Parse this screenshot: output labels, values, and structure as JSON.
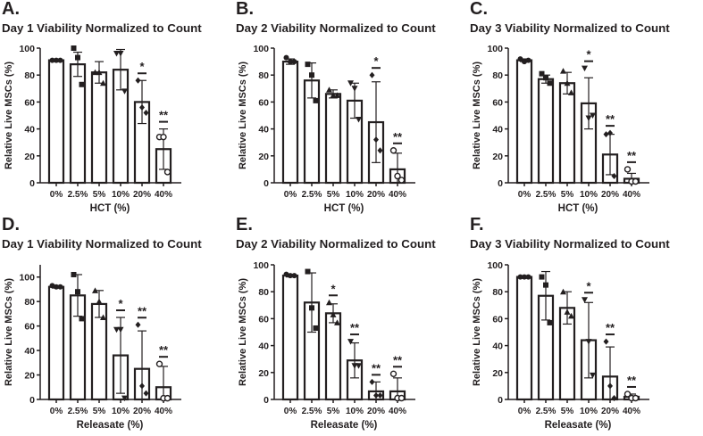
{
  "chart_data": [
    {
      "panel": "A.",
      "type": "bar",
      "title": "Day 1 Viability Normalized to Count",
      "xlabel": "HCT (%)",
      "ylabel": "Relative Live MSCs  (%)",
      "ylim": [
        0,
        100
      ],
      "yticks": [
        0,
        20,
        40,
        60,
        80,
        100
      ],
      "categories": [
        "0%",
        "2.5%",
        "5%",
        "10%",
        "20%",
        "40%"
      ],
      "means": [
        91,
        88,
        82,
        84,
        60,
        25
      ],
      "sd": [
        1,
        9,
        8,
        15,
        16,
        15
      ],
      "points": [
        [
          91,
          91,
          91
        ],
        [
          100,
          93,
          73
        ],
        [
          82,
          82,
          74
        ],
        [
          96,
          96,
          68
        ],
        [
          76,
          56,
          52
        ],
        [
          34,
          34,
          8
        ]
      ],
      "significance": [
        "",
        "",
        "",
        "",
        "*",
        "**"
      ]
    },
    {
      "panel": "B.",
      "type": "bar",
      "title": "Day 2 Viability Normalized to Count",
      "xlabel": "HCT (%)",
      "ylabel": "Relative Live MSCs  (%)",
      "ylim": [
        0,
        100
      ],
      "yticks": [
        0,
        20,
        40,
        60,
        80,
        100
      ],
      "categories": [
        "0%",
        "2.5%",
        "5%",
        "10%",
        "20%",
        "40%"
      ],
      "means": [
        90,
        76,
        66,
        61,
        45,
        10
      ],
      "sd": [
        2,
        13,
        3,
        13,
        30,
        12
      ],
      "points": [
        [
          93,
          90,
          90
        ],
        [
          88,
          80,
          61
        ],
        [
          69,
          65,
          65
        ],
        [
          74,
          70,
          47
        ],
        [
          80,
          32,
          24
        ],
        [
          24,
          5,
          2
        ]
      ],
      "significance": [
        "",
        "",
        "",
        "",
        "*",
        "**"
      ]
    },
    {
      "panel": "C.",
      "type": "bar",
      "title": "Day 3 Viability Normalized to Count",
      "xlabel": "HCT (%)",
      "ylabel": "Relative Live MSCs  (%)",
      "ylim": [
        0,
        100
      ],
      "yticks": [
        0,
        20,
        40,
        60,
        80,
        100
      ],
      "categories": [
        "0%",
        "2.5%",
        "5%",
        "10%",
        "20%",
        "40%"
      ],
      "means": [
        91,
        77,
        74,
        59,
        21,
        3
      ],
      "sd": [
        1,
        3,
        8,
        19,
        15,
        4
      ],
      "points": [
        [
          92,
          90,
          91
        ],
        [
          81,
          78,
          74
        ],
        [
          83,
          74,
          67
        ],
        [
          85,
          48,
          50
        ],
        [
          36,
          37,
          5
        ],
        [
          10,
          1,
          1
        ]
      ],
      "significance": [
        "",
        "",
        "",
        "*",
        "**",
        "**"
      ]
    },
    {
      "panel": "D.",
      "type": "bar",
      "title": "Day 1 Viability Normalized to Count",
      "xlabel": "Releasate (%)",
      "ylabel": "Relative Live MSCs  (%)",
      "ylim": [
        0,
        110
      ],
      "yticks": [
        0,
        20,
        40,
        60,
        80,
        100
      ],
      "categories": [
        "0%",
        "2.5%",
        "5%",
        "10%",
        "20%",
        "40%"
      ],
      "means": [
        92,
        85,
        78,
        36,
        25,
        10
      ],
      "sd": [
        1,
        17,
        11,
        31,
        31,
        17
      ],
      "points": [
        [
          93,
          92,
          92
        ],
        [
          102,
          88,
          66
        ],
        [
          89,
          80,
          67
        ],
        [
          57,
          57,
          1
        ],
        [
          61,
          11,
          5
        ],
        [
          29,
          1,
          1
        ]
      ],
      "significance": [
        "",
        "",
        "",
        "*",
        "**",
        "**"
      ]
    },
    {
      "panel": "E.",
      "type": "bar",
      "title": "Day 2 Viability Normalized to Count",
      "xlabel": "Releasate (%)",
      "ylabel": "Relative Live MSCs  (%)",
      "ylim": [
        0,
        100
      ],
      "yticks": [
        0,
        20,
        40,
        60,
        80,
        100
      ],
      "categories": [
        "0%",
        "2.5%",
        "5%",
        "10%",
        "20%",
        "40%"
      ],
      "means": [
        92,
        72,
        64,
        29,
        6,
        6
      ],
      "sd": [
        1,
        22,
        7,
        13,
        7,
        10
      ],
      "points": [
        [
          93,
          92,
          92
        ],
        [
          95,
          68,
          53
        ],
        [
          72,
          63,
          57
        ],
        [
          43,
          25,
          25
        ],
        [
          13,
          3,
          3
        ],
        [
          19,
          1,
          1
        ]
      ],
      "significance": [
        "",
        "",
        "*",
        "**",
        "**",
        "**"
      ]
    },
    {
      "panel": "F.",
      "type": "bar",
      "title": "Day 3 Viability Normalized to Count",
      "xlabel": "Releasate (%)",
      "ylabel": "Relative Live MSCs  (%)",
      "ylim": [
        0,
        100
      ],
      "yticks": [
        0,
        20,
        40,
        60,
        80,
        100
      ],
      "categories": [
        "0%",
        "2.5%",
        "5%",
        "10%",
        "20%",
        "40%"
      ],
      "means": [
        91,
        77,
        68,
        44,
        17,
        2
      ],
      "sd": [
        1,
        18,
        12,
        28,
        22,
        2
      ],
      "points": [
        [
          91,
          91,
          91
        ],
        [
          91,
          85,
          57
        ],
        [
          80,
          65,
          62
        ],
        [
          74,
          43,
          18
        ],
        [
          43,
          10,
          1
        ],
        [
          4,
          1,
          1
        ]
      ],
      "significance": [
        "",
        "",
        "",
        "*",
        "**",
        "**"
      ]
    }
  ],
  "markers": [
    "filled-circle",
    "square",
    "triangle-up",
    "triangle-down",
    "diamond",
    "open-circle"
  ],
  "colors": {
    "ink": "#231f20",
    "bar": "#ffffff"
  }
}
